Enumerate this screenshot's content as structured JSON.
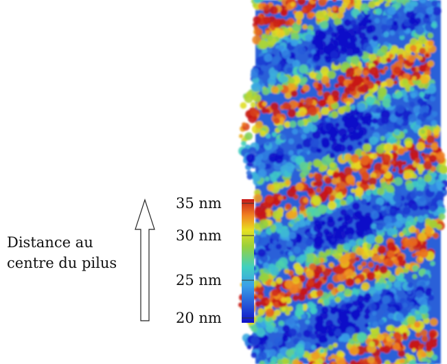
{
  "axis_label": {
    "lines": [
      "Distance au",
      "centre du pilus"
    ]
  },
  "colorbar": {
    "ticks": [
      "35 nm",
      "30 nm",
      "25 nm",
      "20 nm"
    ]
  }
}
